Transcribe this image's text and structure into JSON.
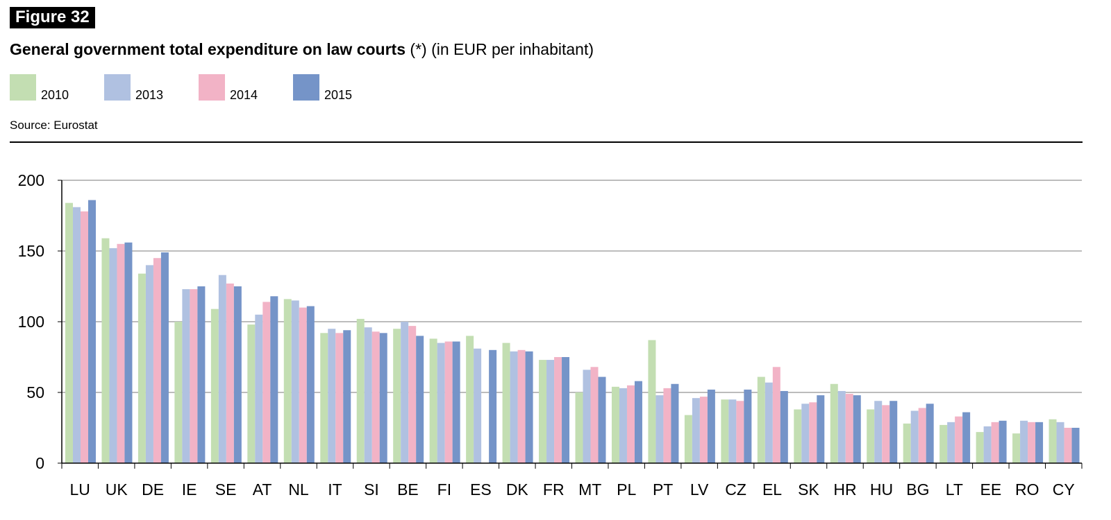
{
  "figure_label": "Figure 32",
  "title_bold": "General government total expenditure on law courts",
  "title_rest": " (*) (in EUR per inhabitant)",
  "source": "Source: Eurostat",
  "colors": {
    "2010": "#c3deb2",
    "2013": "#b0c1e1",
    "2014": "#f2b3c6",
    "2015": "#7594c8",
    "grid": "#a6a6a6",
    "axis": "#000000"
  },
  "legend": [
    {
      "label": "2010",
      "color": "#c3deb2"
    },
    {
      "label": "2013",
      "color": "#b0c1e1"
    },
    {
      "label": "2014",
      "color": "#f2b3c6"
    },
    {
      "label": "2015",
      "color": "#7594c8"
    }
  ],
  "chart_data": {
    "type": "bar",
    "title": "General government total expenditure on law courts (*) (in EUR per inhabitant)",
    "xlabel": "",
    "ylabel": "",
    "ylim": [
      0,
      200
    ],
    "yticks": [
      0,
      50,
      100,
      150,
      200
    ],
    "grid": true,
    "legend_placement": "top-left",
    "categories": [
      "LU",
      "UK",
      "DE",
      "IE",
      "SE",
      "AT",
      "NL",
      "IT",
      "SI",
      "BE",
      "FI",
      "ES",
      "DK",
      "FR",
      "MT",
      "PL",
      "PT",
      "LV",
      "CZ",
      "EL",
      "SK",
      "HR",
      "HU",
      "BG",
      "LT",
      "EE",
      "RO",
      "CY"
    ],
    "series": [
      {
        "name": "2010",
        "values": [
          184,
          159,
          134,
          100,
          109,
          98,
          116,
          92,
          102,
          95,
          88,
          90,
          85,
          73,
          50,
          54,
          87,
          34,
          45,
          61,
          38,
          56,
          38,
          28,
          27,
          22,
          21,
          31
        ]
      },
      {
        "name": "2013",
        "values": [
          181,
          152,
          140,
          123,
          133,
          105,
          115,
          95,
          96,
          100,
          85,
          81,
          79,
          73,
          66,
          53,
          48,
          46,
          45,
          57,
          42,
          51,
          44,
          37,
          29,
          26,
          30,
          29
        ]
      },
      {
        "name": "2014",
        "values": [
          178,
          155,
          145,
          123,
          127,
          114,
          110,
          92,
          93,
          97,
          86,
          null,
          80,
          75,
          68,
          55,
          53,
          47,
          44,
          68,
          43,
          49,
          41,
          39,
          33,
          29,
          29,
          25
        ]
      },
      {
        "name": "2015",
        "values": [
          186,
          156,
          149,
          125,
          125,
          118,
          111,
          94,
          92,
          90,
          86,
          80,
          79,
          75,
          61,
          58,
          56,
          52,
          52,
          51,
          48,
          48,
          44,
          42,
          36,
          30,
          29,
          25
        ]
      }
    ]
  }
}
